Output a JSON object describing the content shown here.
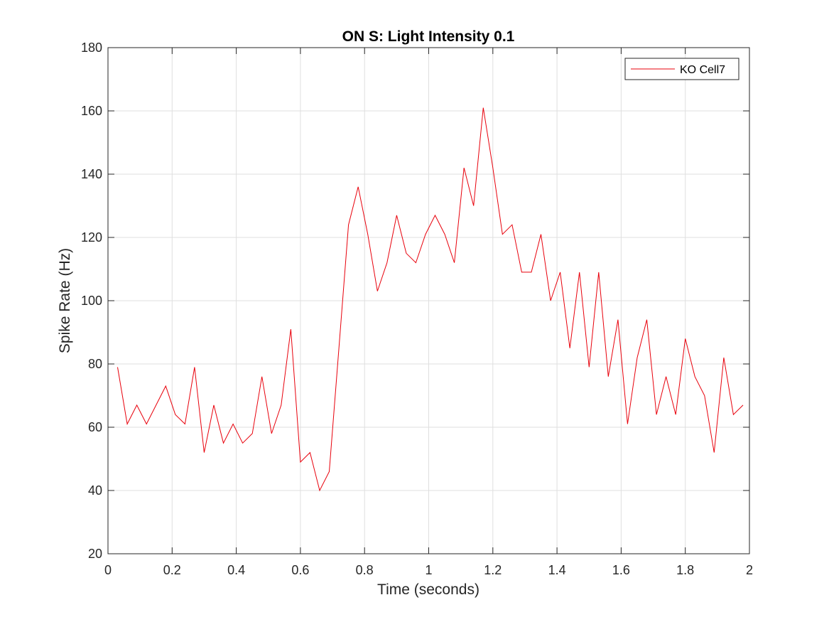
{
  "chart_data": {
    "type": "line",
    "title": "ON S: Light Intensity 0.1",
    "xlabel": "Time (seconds)",
    "ylabel": "Spike Rate (Hz)",
    "xlim": [
      0,
      2
    ],
    "ylim": [
      20,
      180
    ],
    "xticks": [
      0,
      0.2,
      0.4,
      0.6,
      0.8,
      1,
      1.2,
      1.4,
      1.6,
      1.8,
      2
    ],
    "xtick_labels": [
      "0",
      "0.2",
      "0.4",
      "0.6",
      "0.8",
      "1",
      "1.2",
      "1.4",
      "1.6",
      "1.8",
      "2"
    ],
    "yticks": [
      20,
      40,
      60,
      80,
      100,
      120,
      140,
      160,
      180
    ],
    "ytick_labels": [
      "20",
      "40",
      "60",
      "80",
      "100",
      "120",
      "140",
      "160",
      "180"
    ],
    "grid": true,
    "legend_position": "top-right",
    "series": [
      {
        "name": "KO Cell7",
        "color": "#e8000b",
        "x": [
          0.03,
          0.06,
          0.09,
          0.12,
          0.15,
          0.18,
          0.21,
          0.24,
          0.27,
          0.3,
          0.33,
          0.36,
          0.39,
          0.42,
          0.45,
          0.48,
          0.51,
          0.54,
          0.57,
          0.6,
          0.63,
          0.66,
          0.69,
          0.72,
          0.75,
          0.78,
          0.81,
          0.84,
          0.87,
          0.9,
          0.93,
          0.96,
          0.99,
          1.02,
          1.05,
          1.08,
          1.11,
          1.14,
          1.17,
          1.2,
          1.23,
          1.26,
          1.29,
          1.32,
          1.35,
          1.38,
          1.41,
          1.44,
          1.47,
          1.5,
          1.53,
          1.56,
          1.59,
          1.62,
          1.65,
          1.68,
          1.71,
          1.74,
          1.77,
          1.8,
          1.83,
          1.86,
          1.89,
          1.92,
          1.95,
          1.98
        ],
        "y": [
          79,
          61,
          67,
          61,
          67,
          73,
          64,
          61,
          79,
          52,
          67,
          55,
          61,
          55,
          58,
          76,
          58,
          67,
          91,
          49,
          52,
          40,
          46,
          85,
          124,
          136,
          121,
          103,
          112,
          127,
          115,
          112,
          121,
          127,
          121,
          112,
          142,
          130,
          161,
          142,
          121,
          124,
          109,
          109,
          121,
          100,
          109,
          85,
          109,
          79,
          109,
          76,
          94,
          61,
          82,
          94,
          64,
          76,
          64,
          88,
          76,
          70,
          52,
          82,
          64,
          67
        ]
      }
    ]
  }
}
